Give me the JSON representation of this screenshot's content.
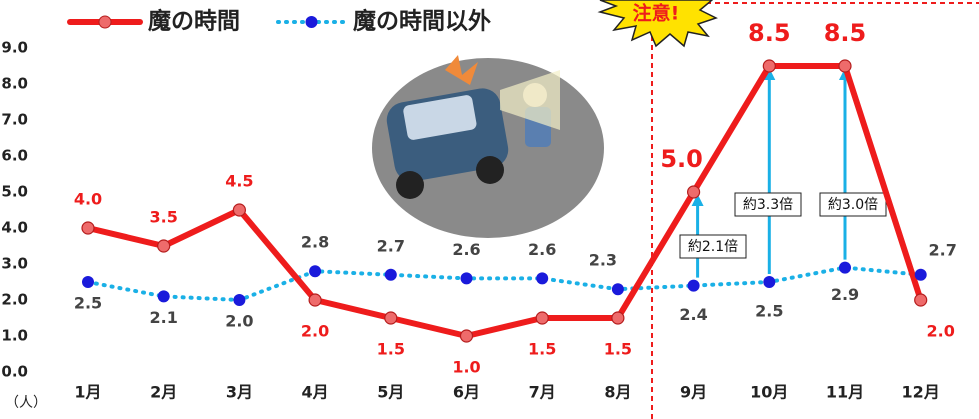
{
  "chart_data": {
    "type": "line",
    "categories": [
      "1月",
      "2月",
      "3月",
      "4月",
      "5月",
      "6月",
      "7月",
      "8月",
      "9月",
      "10月",
      "11月",
      "12月"
    ],
    "series": [
      {
        "name": "魔の時間",
        "color": "#ee1c1c",
        "style": "solid",
        "values": [
          4.0,
          3.5,
          4.5,
          2.0,
          1.5,
          1.0,
          1.5,
          1.5,
          5.0,
          8.5,
          8.5,
          2.0
        ],
        "value_labels": [
          "4.0",
          "3.5",
          "4.5",
          "2.0",
          "1.5",
          "1.0",
          "1.5",
          "1.5",
          "5.0",
          "8.5",
          "8.5",
          "2.0"
        ]
      },
      {
        "name": "魔の時間以外",
        "color": "#1a1adb",
        "style": "dotted",
        "values": [
          2.5,
          2.1,
          2.0,
          2.8,
          2.7,
          2.6,
          2.6,
          2.3,
          2.4,
          2.5,
          2.9,
          2.7
        ],
        "value_labels": [
          "2.5",
          "2.1",
          "2.0",
          "2.8",
          "2.7",
          "2.6",
          "2.6",
          "2.3",
          "2.4",
          "2.5",
          "2.9",
          "2.7"
        ]
      }
    ],
    "ylim": [
      0,
      9
    ],
    "yticks": [
      {
        "value": 0,
        "label": "0.0"
      },
      {
        "value": 1,
        "label": "1.0"
      },
      {
        "value": 2,
        "label": "2.0"
      },
      {
        "value": 3,
        "label": "3.0"
      },
      {
        "value": 4,
        "label": "4.0"
      },
      {
        "value": 5,
        "label": "5.0"
      },
      {
        "value": 6,
        "label": "6.0"
      },
      {
        "value": 7,
        "label": "7.0"
      },
      {
        "value": 8,
        "label": "8.0"
      },
      {
        "value": 9,
        "label": "9.0"
      }
    ],
    "y_unit": "（人）",
    "warning": "注意!",
    "ratio_labels": [
      "約2.1倍",
      "約3.3倍",
      "約3.0倍"
    ],
    "legend_position": "top"
  }
}
